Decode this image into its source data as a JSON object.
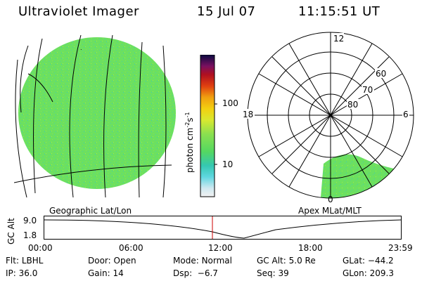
{
  "header": {
    "instrument": "Ultraviolet Imager",
    "date": "15 Jul 07",
    "time": "11:15:51 UT"
  },
  "colorbar": {
    "unit_label": "photon cm",
    "unit_sup1": "-2",
    "unit_mid": "s",
    "unit_sup2": "-1",
    "ticks": [
      "100",
      "10"
    ]
  },
  "polar_plot": {
    "labels": {
      "top": "12",
      "left": "18",
      "right": "6",
      "bottom": "0",
      "ring60": "60",
      "ring70": "70",
      "ring80": "80"
    }
  },
  "projections": {
    "left": "Geographic Lat/Lon",
    "right": "Apex MLat/MLT"
  },
  "altitude_plot": {
    "ylabel": "GC Alt",
    "y_ticks": [
      "9.0",
      "1.8"
    ],
    "x_ticks": [
      "00:00",
      "06:00",
      "12:00",
      "18:00",
      "23:59"
    ]
  },
  "footer": {
    "row1": [
      {
        "label": "Flt:",
        "value": "LBHL"
      },
      {
        "label": "Door:",
        "value": "Open"
      },
      {
        "label": "Mode:",
        "value": "Normal"
      },
      {
        "label": "GC Alt:",
        "value": "5.0 Re"
      },
      {
        "label": "GLat:",
        "value": "−44.2"
      }
    ],
    "row2": [
      {
        "label": "IP:",
        "value": "36.0"
      },
      {
        "label": "Gain:",
        "value": "14"
      },
      {
        "label": "Dsp:",
        "value": "  −6.7"
      },
      {
        "label": "Seq:",
        "value": "39"
      },
      {
        "label": "GLon:",
        "value": "209.3"
      }
    ]
  },
  "colors": {
    "emission": "#66dd55",
    "line": "#000000",
    "marker": "#cc0000"
  }
}
